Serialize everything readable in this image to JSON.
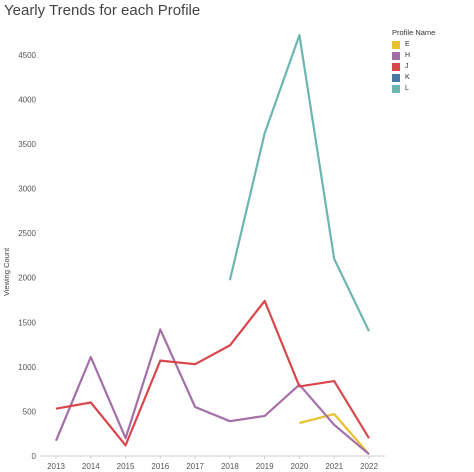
{
  "chart_data": {
    "type": "line",
    "title": "Yearly Trends for each Profile",
    "xlabel": "",
    "ylabel": "Viewing Count",
    "x": [
      2013,
      2014,
      2015,
      2016,
      2017,
      2018,
      2019,
      2020,
      2021,
      2022
    ],
    "ylim": [
      0,
      4800
    ],
    "yticks": [
      0,
      500,
      1000,
      1500,
      2000,
      2500,
      3000,
      3500,
      4000,
      4500
    ],
    "grid": false,
    "legend": {
      "title": "Profile Name",
      "position": "top-right"
    },
    "series": [
      {
        "name": "E",
        "color": "#e8c12e",
        "values": [
          null,
          null,
          null,
          null,
          null,
          null,
          null,
          370,
          470,
          20
        ]
      },
      {
        "name": "H",
        "color": "#a46fa8",
        "values": [
          170,
          1110,
          200,
          1420,
          550,
          390,
          450,
          800,
          350,
          20
        ]
      },
      {
        "name": "J",
        "color": "#d9474c",
        "values": [
          530,
          600,
          120,
          1070,
          1030,
          1240,
          1740,
          780,
          840,
          200
        ]
      },
      {
        "name": "K",
        "color": "#4a79a5",
        "values": [
          null,
          null,
          null,
          null,
          null,
          null,
          null,
          null,
          null,
          null
        ]
      },
      {
        "name": "L",
        "color": "#6bb6b0",
        "values": [
          null,
          null,
          null,
          null,
          null,
          1970,
          3620,
          4720,
          2210,
          1400
        ]
      }
    ]
  }
}
